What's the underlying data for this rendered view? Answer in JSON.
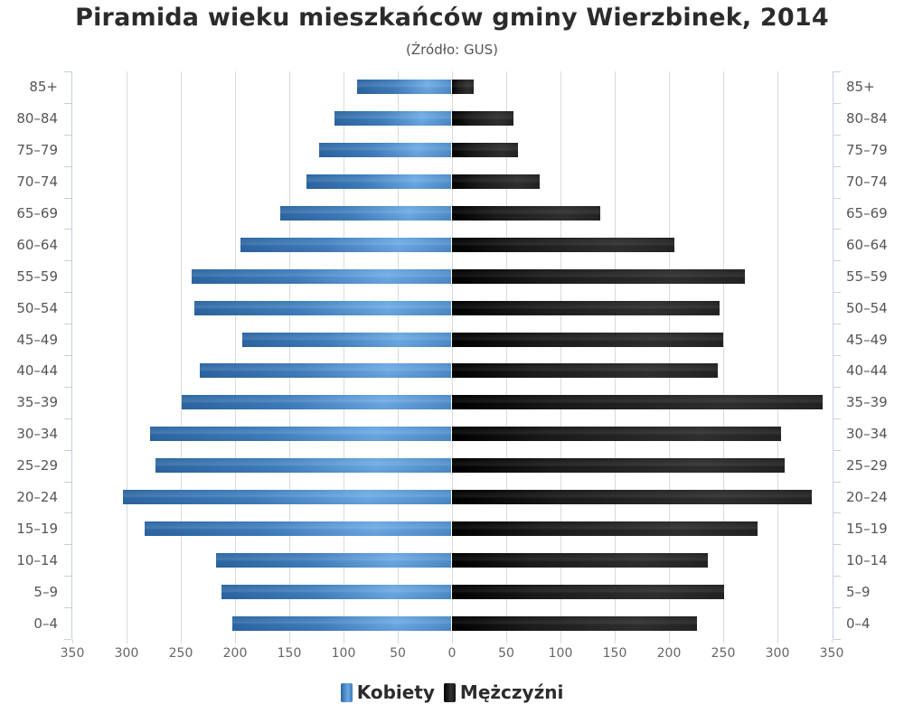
{
  "header": {
    "title": "Piramida wieku mieszkańców gminy Wierzbinek, 2014",
    "subtitle": "(Źródło: GUS)"
  },
  "legend": {
    "items": [
      {
        "label": "Kobiety",
        "color": "#4a87c5"
      },
      {
        "label": "Mężczyźni",
        "color": "#111111"
      }
    ]
  },
  "x_ticks_left": [
    "350",
    "300",
    "250",
    "200",
    "150",
    "100",
    "50",
    "0"
  ],
  "x_ticks_right": [
    "50",
    "100",
    "150",
    "200",
    "250",
    "300",
    "350"
  ],
  "chart_data": {
    "type": "bar",
    "orientation": "horizontal",
    "subtype": "population-pyramid",
    "title": "Piramida wieku mieszkańców gminy Wierzbinek, 2014",
    "subtitle": "(Źródło: GUS)",
    "xlabel": "",
    "ylabel": "",
    "xlim": [
      -350,
      350
    ],
    "x_tick_labels": [
      "350",
      "300",
      "250",
      "200",
      "150",
      "100",
      "50",
      "0",
      "50",
      "100",
      "150",
      "200",
      "250",
      "300",
      "350"
    ],
    "grid": true,
    "legend_position": "bottom",
    "categories": [
      "85+",
      "80-84",
      "75-79",
      "70-74",
      "65-69",
      "60-64",
      "55-59",
      "50-54",
      "45-49",
      "40-44",
      "35-39",
      "30-34",
      "25-29",
      "20-24",
      "15-19",
      "10-14",
      "5-9",
      "0-4"
    ],
    "series": [
      {
        "name": "Kobiety",
        "side": "left",
        "color": "#4a87c5",
        "values": [
          87,
          108,
          122,
          134,
          158,
          195,
          240,
          237,
          193,
          232,
          249,
          278,
          273,
          303,
          283,
          217,
          212,
          202
        ]
      },
      {
        "name": "Mężczyźni",
        "side": "right",
        "color": "#111111",
        "values": [
          20,
          57,
          61,
          81,
          137,
          205,
          270,
          247,
          250,
          245,
          342,
          304,
          307,
          332,
          282,
          236,
          251,
          226
        ]
      }
    ]
  }
}
